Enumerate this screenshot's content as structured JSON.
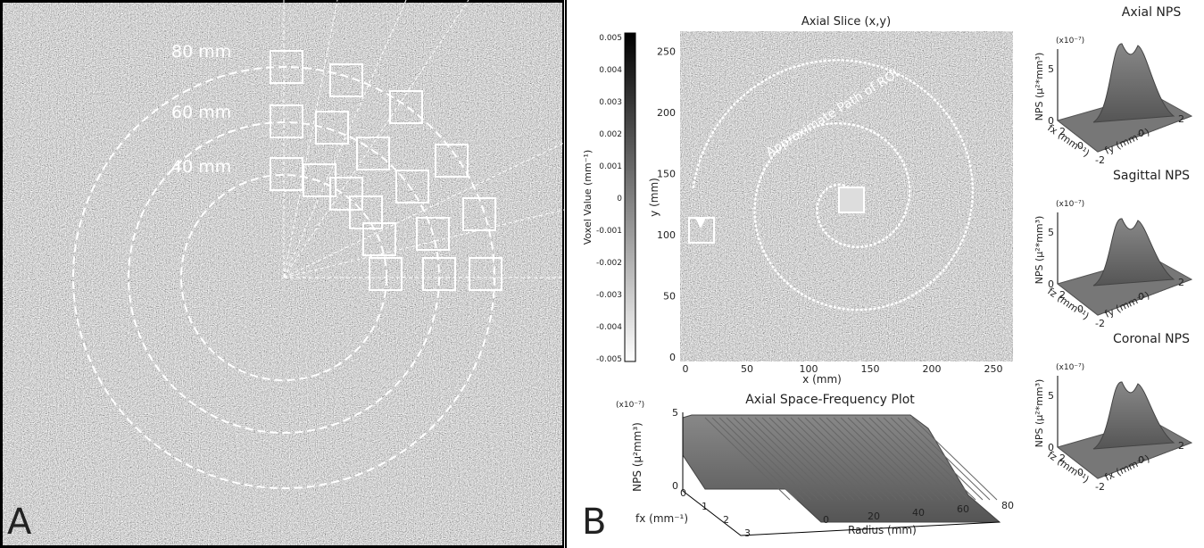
{
  "panel_a": {
    "label": "A",
    "rings": [
      "80 mm",
      "60 mm",
      "40 mm"
    ]
  },
  "panel_b": {
    "label": "B",
    "colorbar": {
      "label": "Voxel Value (mm⁻¹)",
      "ticks": [
        "0.005",
        "0.004",
        "0.003",
        "0.002",
        "0.001",
        "0",
        "-0.001",
        "-0.002",
        "-0.003",
        "-0.004",
        "-0.005"
      ]
    },
    "axial_slice": {
      "title": "Axial Slice (x,y)",
      "x_label": "x (mm)",
      "y_label": "y (mm)",
      "x_ticks": [
        "0",
        "50",
        "100",
        "150",
        "200",
        "250"
      ],
      "y_ticks": [
        "0",
        "50",
        "100",
        "150",
        "200",
        "250"
      ],
      "annotation": "Approximate Path of ROI"
    },
    "space_frequency": {
      "title": "Axial Space-Frequency Plot",
      "scale": "(x10⁻⁷)",
      "z_label": "NPS (µ²mm³)",
      "z_ticks": [
        "0",
        "5"
      ],
      "f_label": "fx (mm⁻¹)",
      "f_ticks": [
        "0",
        "1",
        "2",
        "3"
      ],
      "r_label": "Radius (mm)",
      "r_ticks": [
        "0",
        "20",
        "40",
        "60",
        "80"
      ]
    },
    "nps_plots": [
      {
        "title": "Axial NPS",
        "scale": "(x10⁻⁷)",
        "z_label": "NPS (µ²*mm³)",
        "z_ticks": [
          "0",
          "5"
        ],
        "left_label": "fx (mm⁻¹)",
        "left_ticks": [
          "2",
          "0",
          "-2"
        ],
        "right_label": "fy (mm⁻¹)",
        "right_ticks": [
          "0",
          "2"
        ]
      },
      {
        "title": "Sagittal NPS",
        "scale": "(x10⁻⁷)",
        "z_label": "NPS (µ²*mm³)",
        "z_ticks": [
          "0",
          "5"
        ],
        "left_label": "fz (mm⁻¹)",
        "left_ticks": [
          "2",
          "0",
          "-2"
        ],
        "right_label": "fy (mm⁻¹)",
        "right_ticks": [
          "0",
          "2"
        ]
      },
      {
        "title": "Coronal NPS",
        "scale": "(x10⁻⁷)",
        "z_label": "NPS (µ²*mm³)",
        "z_ticks": [
          "0",
          "5"
        ],
        "left_label": "fz (mm⁻¹)",
        "left_ticks": [
          "2",
          "0",
          "-2"
        ],
        "right_label": "fx (mm⁻¹)",
        "right_ticks": [
          "0",
          "2"
        ]
      }
    ]
  }
}
